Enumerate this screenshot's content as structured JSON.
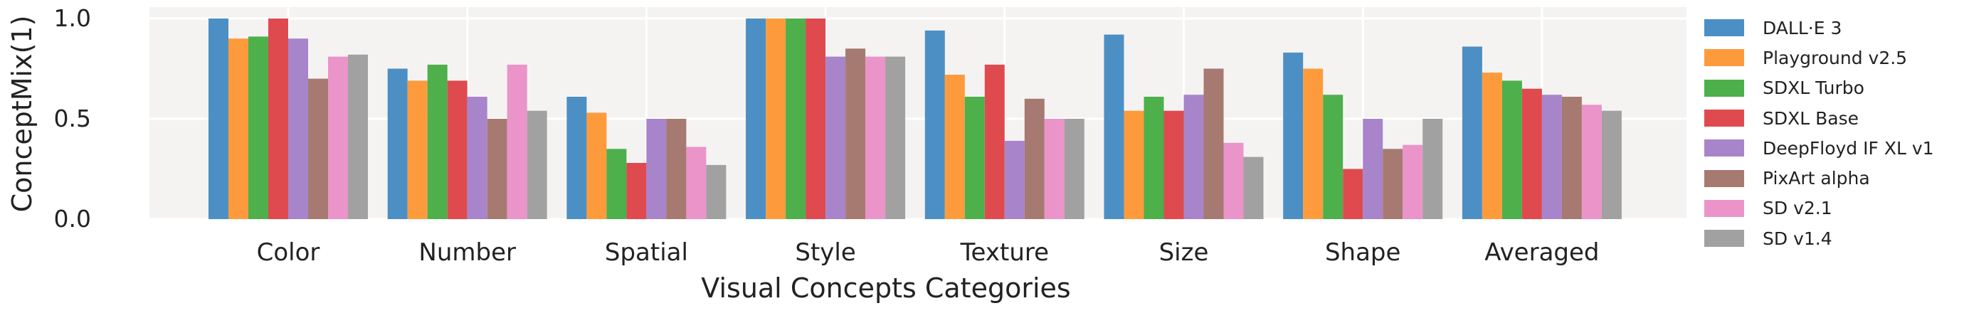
{
  "chart_data": {
    "type": "bar",
    "title": "",
    "xlabel": "Visual Concepts Categories",
    "ylabel": "ConceptMix(1)",
    "ylim": [
      0,
      1.0
    ],
    "yticks": [
      "0.0",
      "0.5",
      "1.0"
    ],
    "grid": true,
    "legend_position": "right",
    "categories": [
      "Color",
      "Number",
      "Spatial",
      "Style",
      "Texture",
      "Size",
      "Shape",
      "Averaged"
    ],
    "series": [
      {
        "name": "DALL·E 3",
        "color": "#4c8fc4",
        "values": [
          1.0,
          0.75,
          0.61,
          1.0,
          0.94,
          0.92,
          0.83,
          0.86
        ]
      },
      {
        "name": "Playground v2.5",
        "color": "#fd9b3c",
        "values": [
          0.9,
          0.69,
          0.53,
          1.0,
          0.72,
          0.54,
          0.75,
          0.73
        ]
      },
      {
        "name": "SDXL Turbo",
        "color": "#4db04b",
        "values": [
          0.91,
          0.77,
          0.35,
          1.0,
          0.61,
          0.61,
          0.62,
          0.69
        ]
      },
      {
        "name": "SDXL Base",
        "color": "#df4a4f",
        "values": [
          1.0,
          0.69,
          0.28,
          1.0,
          0.77,
          0.54,
          0.25,
          0.65
        ]
      },
      {
        "name": "DeepFloyd IF XL v1",
        "color": "#a884cb",
        "values": [
          0.9,
          0.61,
          0.5,
          0.81,
          0.39,
          0.62,
          0.5,
          0.62
        ]
      },
      {
        "name": "PixArt alpha",
        "color": "#a67a70",
        "values": [
          0.7,
          0.5,
          0.5,
          0.85,
          0.6,
          0.75,
          0.35,
          0.61
        ]
      },
      {
        "name": "SD v2.1",
        "color": "#ea94c9",
        "values": [
          0.81,
          0.77,
          0.36,
          0.81,
          0.5,
          0.38,
          0.37,
          0.57
        ]
      },
      {
        "name": "SD v1.4",
        "color": "#a1a1a1",
        "values": [
          0.82,
          0.54,
          0.27,
          0.81,
          0.5,
          0.31,
          0.5,
          0.54
        ]
      }
    ]
  }
}
